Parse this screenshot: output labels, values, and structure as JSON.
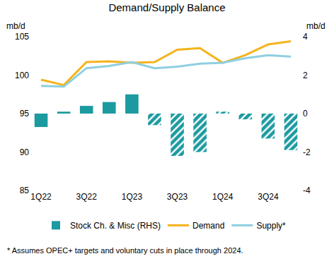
{
  "chart_data": {
    "type": "combo",
    "title": "Demand/Supply Balance",
    "ylabel": "mb/d",
    "y2label": "mb/d",
    "categories": [
      "1Q22",
      null,
      "3Q22",
      null,
      "1Q23",
      null,
      "3Q23",
      null,
      "1Q24",
      null,
      "3Q24",
      null
    ],
    "series": [
      {
        "name": "Stock Ch. & Misc (RHS)",
        "type": "bar",
        "axis": "y2",
        "color": "#1B9AA0",
        "values": [
          -0.7,
          0.1,
          0.4,
          0.6,
          1.0,
          null,
          null,
          null,
          null,
          null,
          null,
          null
        ]
      },
      {
        "name": "Stock Ch. & Misc (RHS)",
        "type": "bar",
        "axis": "y2",
        "color": "#1B9AA0",
        "marker": "hatched",
        "values": [
          null,
          null,
          null,
          null,
          null,
          -0.6,
          -2.2,
          -2.0,
          0.1,
          -0.3,
          -1.3,
          -1.9
        ]
      },
      {
        "name": "Demand",
        "type": "line",
        "color": "#F5B31B",
        "values": [
          99.4,
          98.7,
          101.7,
          101.8,
          101.6,
          101.7,
          103.3,
          103.5,
          101.6,
          102.6,
          104.0,
          104.4
        ]
      },
      {
        "name": "Supply*",
        "type": "line",
        "color": "#8ECFE0",
        "values": [
          98.6,
          98.5,
          100.9,
          101.2,
          101.7,
          100.9,
          101.1,
          101.5,
          101.6,
          102.2,
          102.6,
          102.4
        ]
      }
    ],
    "ylim": [
      85,
      105
    ],
    "yticks": [
      85,
      90,
      95,
      100,
      105
    ],
    "y2lim": [
      -4,
      4
    ],
    "y2ticks": [
      -4,
      -2,
      0,
      2,
      4
    ],
    "grid": false,
    "legend": "bottom",
    "annotations": [
      "* Assumes OPEC+ targets and voluntary cuts in place through 2024."
    ]
  }
}
